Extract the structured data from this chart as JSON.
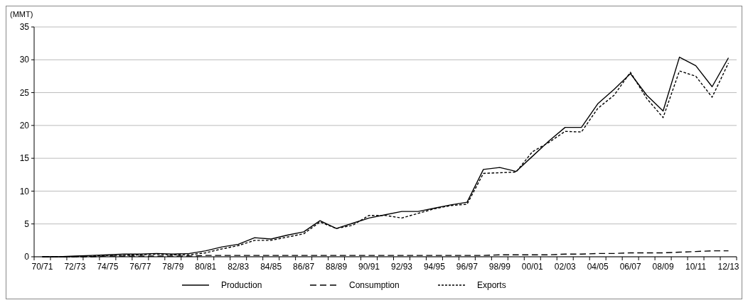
{
  "chart_data": {
    "type": "line",
    "ylabel": "(MMT)",
    "categories": [
      "70/71",
      null,
      "72/73",
      null,
      "74/75",
      null,
      "76/77",
      null,
      "78/79",
      null,
      "80/81",
      null,
      "82/83",
      null,
      "84/85",
      null,
      "86/87",
      null,
      "88/89",
      null,
      "90/91",
      null,
      "92/93",
      null,
      "94/95",
      null,
      "96/97",
      null,
      "98/99",
      null,
      "00/01",
      null,
      "02/03",
      null,
      "04/05",
      null,
      "06/07",
      null,
      "08/09",
      null,
      "10/11",
      null,
      "12/13"
    ],
    "series": [
      {
        "name": "Production",
        "color": "#000000",
        "line_style": "solid",
        "values": [
          0,
          0,
          0.1,
          0.2,
          0.3,
          0.4,
          0.4,
          0.5,
          0.4,
          0.5,
          0.9,
          1.5,
          1.9,
          2.9,
          2.7,
          3.3,
          3.8,
          5.5,
          4.3,
          5.1,
          5.9,
          6.4,
          6.9,
          6.9,
          7.4,
          7.9,
          8.3,
          13.3,
          13.6,
          13.0,
          15.3,
          17.6,
          19.7,
          19.7,
          23.3,
          25.5,
          27.9,
          24.6,
          22.2,
          30.4,
          29.1,
          25.9,
          30.3
        ]
      },
      {
        "name": "Consumption",
        "color": "#000000",
        "line_style": "dashed",
        "values": [
          0,
          0,
          0,
          0,
          0.1,
          0.1,
          0.1,
          0.1,
          0.1,
          0.1,
          0.2,
          0.2,
          0.2,
          0.2,
          0.2,
          0.2,
          0.2,
          0.2,
          0.2,
          0.2,
          0.2,
          0.2,
          0.2,
          0.2,
          0.2,
          0.2,
          0.2,
          0.2,
          0.3,
          0.3,
          0.3,
          0.3,
          0.4,
          0.4,
          0.5,
          0.5,
          0.6,
          0.6,
          0.6,
          0.7,
          0.8,
          0.9,
          0.9
        ]
      },
      {
        "name": "Exports",
        "color": "#000000",
        "line_style": "dotted",
        "values": [
          0,
          0,
          0,
          0.1,
          0.2,
          0.2,
          0.3,
          0.4,
          0.3,
          0.3,
          0.6,
          1.2,
          1.7,
          2.5,
          2.5,
          3.0,
          3.5,
          5.3,
          4.3,
          4.8,
          6.3,
          6.3,
          5.9,
          6.6,
          7.3,
          7.8,
          8.0,
          12.7,
          12.8,
          12.9,
          16.0,
          17.4,
          19.1,
          19.0,
          22.6,
          24.6,
          28.1,
          24.1,
          21.2,
          28.3,
          27.5,
          24.3,
          29.5
        ]
      }
    ],
    "ylim": [
      0,
      35
    ],
    "yticks": [
      0,
      5,
      10,
      15,
      20,
      25,
      30,
      35
    ],
    "grid": "y",
    "legend": "bottom",
    "marker": "none"
  }
}
